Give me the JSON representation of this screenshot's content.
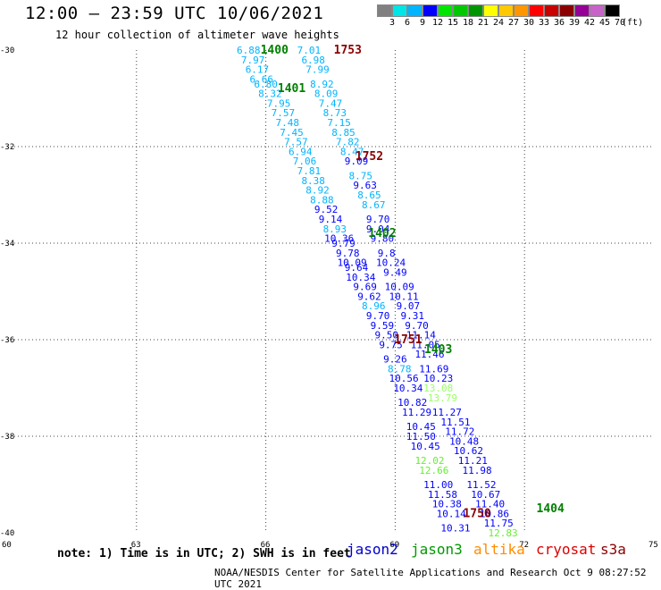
{
  "title": "12:00 – 23:59 UTC 10/06/2021",
  "subtitle": "12 hour collection of altimeter wave heights",
  "color_scale": {
    "unit": "(ft)",
    "colors": [
      "#808080",
      "#00e5e5",
      "#00b4ff",
      "#0000ff",
      "#00e600",
      "#00c800",
      "#009600",
      "#ffff00",
      "#ffc800",
      "#ff9600",
      "#ff0000",
      "#c80000",
      "#8c0000",
      "#960096",
      "#c864c8",
      "#000000"
    ],
    "labels": [
      "3",
      "6",
      "9",
      "12",
      "15",
      "18",
      "21",
      "24",
      "27",
      "30",
      "33",
      "36",
      "39",
      "42",
      "45",
      "70"
    ]
  },
  "chart_data": {
    "type": "scatter",
    "x_axis": {
      "range": [
        60,
        75
      ],
      "ticks": [
        "60",
        "63",
        "66",
        "69",
        "72",
        "75"
      ]
    },
    "y_axis": {
      "range": [
        -40,
        -30
      ],
      "ticks": [
        "-30",
        "-32",
        "-34",
        "-36",
        "-38",
        "-40"
      ]
    },
    "grid": true,
    "wave_heights": [
      {
        "lon": 65.6,
        "lat": -30.0,
        "v": "6.88",
        "c": "#00b4ff"
      },
      {
        "lon": 65.7,
        "lat": -30.2,
        "v": "7.97",
        "c": "#00b4ff"
      },
      {
        "lon": 65.8,
        "lat": -30.4,
        "v": "6.17",
        "c": "#00b4ff"
      },
      {
        "lon": 65.9,
        "lat": -30.6,
        "v": "6.66",
        "c": "#00b4ff"
      },
      {
        "lon": 66.0,
        "lat": -30.7,
        "v": "6.80",
        "c": "#00b4ff"
      },
      {
        "lon": 66.1,
        "lat": -30.9,
        "v": "8.32",
        "c": "#00b4ff"
      },
      {
        "lon": 66.3,
        "lat": -31.1,
        "v": "7.95",
        "c": "#00b4ff"
      },
      {
        "lon": 66.4,
        "lat": -31.3,
        "v": "7.57",
        "c": "#00b4ff"
      },
      {
        "lon": 66.5,
        "lat": -31.5,
        "v": "7.48",
        "c": "#00b4ff"
      },
      {
        "lon": 66.6,
        "lat": -31.7,
        "v": "7.45",
        "c": "#00b4ff"
      },
      {
        "lon": 66.7,
        "lat": -31.9,
        "v": "7.57",
        "c": "#00b4ff"
      },
      {
        "lon": 66.8,
        "lat": -32.1,
        "v": "6.94",
        "c": "#00b4ff"
      },
      {
        "lon": 66.9,
        "lat": -32.3,
        "v": "7.06",
        "c": "#00b4ff"
      },
      {
        "lon": 67.0,
        "lat": -32.5,
        "v": "7.81",
        "c": "#00b4ff"
      },
      {
        "lon": 67.1,
        "lat": -32.7,
        "v": "8.38",
        "c": "#00b4ff"
      },
      {
        "lon": 67.2,
        "lat": -32.9,
        "v": "8.92",
        "c": "#00b4ff"
      },
      {
        "lon": 67.3,
        "lat": -33.1,
        "v": "8.88",
        "c": "#00b4ff"
      },
      {
        "lon": 67.4,
        "lat": -33.3,
        "v": "9.52",
        "c": "#0000ff"
      },
      {
        "lon": 67.5,
        "lat": -33.5,
        "v": "9.14",
        "c": "#0000ff"
      },
      {
        "lon": 67.6,
        "lat": -33.7,
        "v": "8.93",
        "c": "#00b4ff"
      },
      {
        "lon": 67.7,
        "lat": -33.9,
        "v": "10.36",
        "c": "#0000ff"
      },
      {
        "lon": 67.8,
        "lat": -34.0,
        "v": "9.79",
        "c": "#0000ff"
      },
      {
        "lon": 67.9,
        "lat": -34.2,
        "v": "9.78",
        "c": "#0000ff"
      },
      {
        "lon": 68.0,
        "lat": -34.4,
        "v": "10.09",
        "c": "#0000ff"
      },
      {
        "lon": 68.1,
        "lat": -34.5,
        "v": "9.64",
        "c": "#0000ff"
      },
      {
        "lon": 68.2,
        "lat": -34.7,
        "v": "10.34",
        "c": "#0000ff"
      },
      {
        "lon": 68.3,
        "lat": -34.9,
        "v": "9.69",
        "c": "#0000ff"
      },
      {
        "lon": 68.4,
        "lat": -35.1,
        "v": "9.62",
        "c": "#0000ff"
      },
      {
        "lon": 68.5,
        "lat": -35.3,
        "v": "8.96",
        "c": "#00b4ff"
      },
      {
        "lon": 68.6,
        "lat": -35.5,
        "v": "9.70",
        "c": "#0000ff"
      },
      {
        "lon": 68.7,
        "lat": -35.7,
        "v": "9.59",
        "c": "#0000ff"
      },
      {
        "lon": 68.8,
        "lat": -35.9,
        "v": "9.50",
        "c": "#0000ff"
      },
      {
        "lon": 68.9,
        "lat": -36.1,
        "v": "9.75",
        "c": "#0000ff"
      },
      {
        "lon": 69.0,
        "lat": -36.4,
        "v": "9.26",
        "c": "#0000ff"
      },
      {
        "lon": 69.1,
        "lat": -36.6,
        "v": "8.78",
        "c": "#00b4ff"
      },
      {
        "lon": 69.2,
        "lat": -36.8,
        "v": "10.56",
        "c": "#0000ff"
      },
      {
        "lon": 69.3,
        "lat": -37.0,
        "v": "10.34",
        "c": "#0000ff"
      },
      {
        "lon": 69.4,
        "lat": -37.3,
        "v": "10.82",
        "c": "#0000ff"
      },
      {
        "lon": 69.5,
        "lat": -37.5,
        "v": "11.29",
        "c": "#0000ff"
      },
      {
        "lon": 69.6,
        "lat": -37.8,
        "v": "10.45",
        "c": "#0000ff"
      },
      {
        "lon": 69.6,
        "lat": -38.0,
        "v": "11.50",
        "c": "#0000ff"
      },
      {
        "lon": 69.7,
        "lat": -38.2,
        "v": "10.45",
        "c": "#0000ff"
      },
      {
        "lon": 69.8,
        "lat": -38.5,
        "v": "12.02",
        "c": "#66ee33"
      },
      {
        "lon": 69.9,
        "lat": -38.7,
        "v": "12.66",
        "c": "#66ee33"
      },
      {
        "lon": 70.0,
        "lat": -39.0,
        "v": "11.00",
        "c": "#0000ff"
      },
      {
        "lon": 70.1,
        "lat": -39.2,
        "v": "11.58",
        "c": "#0000ff"
      },
      {
        "lon": 70.2,
        "lat": -39.4,
        "v": "10.38",
        "c": "#0000ff"
      },
      {
        "lon": 70.3,
        "lat": -39.6,
        "v": "10.14",
        "c": "#0000ff"
      },
      {
        "lon": 70.4,
        "lat": -39.9,
        "v": "10.31",
        "c": "#0000ff"
      },
      {
        "lon": 67.0,
        "lat": -30.0,
        "v": "7.01",
        "c": "#00b4ff"
      },
      {
        "lon": 67.1,
        "lat": -30.2,
        "v": "6.98",
        "c": "#00b4ff"
      },
      {
        "lon": 67.2,
        "lat": -30.4,
        "v": "7.99",
        "c": "#00b4ff"
      },
      {
        "lon": 67.3,
        "lat": -30.7,
        "v": "8.92",
        "c": "#00b4ff"
      },
      {
        "lon": 67.4,
        "lat": -30.9,
        "v": "8.09",
        "c": "#00b4ff"
      },
      {
        "lon": 67.5,
        "lat": -31.1,
        "v": "7.47",
        "c": "#00b4ff"
      },
      {
        "lon": 67.6,
        "lat": -31.3,
        "v": "8.73",
        "c": "#00b4ff"
      },
      {
        "lon": 67.7,
        "lat": -31.5,
        "v": "7.15",
        "c": "#00b4ff"
      },
      {
        "lon": 67.8,
        "lat": -31.7,
        "v": "8.85",
        "c": "#00b4ff"
      },
      {
        "lon": 67.9,
        "lat": -31.9,
        "v": "7.82",
        "c": "#00b4ff"
      },
      {
        "lon": 68.0,
        "lat": -32.1,
        "v": "8.47",
        "c": "#00b4ff"
      },
      {
        "lon": 68.1,
        "lat": -32.3,
        "v": "9.09",
        "c": "#0000ff"
      },
      {
        "lon": 68.2,
        "lat": -32.6,
        "v": "8.75",
        "c": "#00b4ff"
      },
      {
        "lon": 68.3,
        "lat": -32.8,
        "v": "9.63",
        "c": "#0000ff"
      },
      {
        "lon": 68.4,
        "lat": -33.0,
        "v": "8.65",
        "c": "#00b4ff"
      },
      {
        "lon": 68.5,
        "lat": -33.2,
        "v": "8.67",
        "c": "#00b4ff"
      },
      {
        "lon": 68.6,
        "lat": -33.5,
        "v": "9.70",
        "c": "#0000ff"
      },
      {
        "lon": 68.6,
        "lat": -33.7,
        "v": "9.04",
        "c": "#0000ff"
      },
      {
        "lon": 68.7,
        "lat": -33.9,
        "v": "9.80",
        "c": "#0000ff"
      },
      {
        "lon": 68.8,
        "lat": -34.2,
        "v": "9.8",
        "c": "#0000ff"
      },
      {
        "lon": 68.9,
        "lat": -34.4,
        "v": "10.24",
        "c": "#0000ff"
      },
      {
        "lon": 69.0,
        "lat": -34.6,
        "v": "9.49",
        "c": "#0000ff"
      },
      {
        "lon": 69.1,
        "lat": -34.9,
        "v": "10.09",
        "c": "#0000ff"
      },
      {
        "lon": 69.2,
        "lat": -35.1,
        "v": "10.11",
        "c": "#0000ff"
      },
      {
        "lon": 69.3,
        "lat": -35.3,
        "v": "9.07",
        "c": "#0000ff"
      },
      {
        "lon": 69.4,
        "lat": -35.5,
        "v": "9.31",
        "c": "#0000ff"
      },
      {
        "lon": 69.5,
        "lat": -35.7,
        "v": "9.70",
        "c": "#0000ff"
      },
      {
        "lon": 69.6,
        "lat": -35.9,
        "v": "11.14",
        "c": "#0000ff"
      },
      {
        "lon": 69.7,
        "lat": -36.1,
        "v": "11.05",
        "c": "#0000ff"
      },
      {
        "lon": 69.8,
        "lat": -36.3,
        "v": "11.46",
        "c": "#0000ff"
      },
      {
        "lon": 69.9,
        "lat": -36.6,
        "v": "11.69",
        "c": "#0000ff"
      },
      {
        "lon": 70.0,
        "lat": -36.8,
        "v": "10.23",
        "c": "#0000ff"
      },
      {
        "lon": 70.0,
        "lat": -37.0,
        "v": "13.08",
        "c": "#99ff66"
      },
      {
        "lon": 70.1,
        "lat": -37.2,
        "v": "13.79",
        "c": "#99ff66"
      },
      {
        "lon": 70.2,
        "lat": -37.5,
        "v": "11.27",
        "c": "#0000ff"
      },
      {
        "lon": 70.4,
        "lat": -37.7,
        "v": "11.51",
        "c": "#0000ff"
      },
      {
        "lon": 70.5,
        "lat": -37.9,
        "v": "11.72",
        "c": "#0000ff"
      },
      {
        "lon": 70.6,
        "lat": -38.1,
        "v": "10.48",
        "c": "#0000ff"
      },
      {
        "lon": 70.7,
        "lat": -38.3,
        "v": "10.62",
        "c": "#0000ff"
      },
      {
        "lon": 70.8,
        "lat": -38.5,
        "v": "11.21",
        "c": "#0000ff"
      },
      {
        "lon": 70.9,
        "lat": -38.7,
        "v": "11.98",
        "c": "#0000ff"
      },
      {
        "lon": 71.0,
        "lat": -39.0,
        "v": "11.52",
        "c": "#0000ff"
      },
      {
        "lon": 71.1,
        "lat": -39.2,
        "v": "10.67",
        "c": "#0000ff"
      },
      {
        "lon": 71.2,
        "lat": -39.4,
        "v": "11.40",
        "c": "#0000ff"
      },
      {
        "lon": 71.3,
        "lat": -39.6,
        "v": "10.86",
        "c": "#0000ff"
      },
      {
        "lon": 71.4,
        "lat": -39.8,
        "v": "11.75",
        "c": "#0000ff"
      },
      {
        "lon": 71.5,
        "lat": -40.0,
        "v": "12.83",
        "c": "#66ee33"
      }
    ],
    "time_labels": [
      {
        "lon": 66.2,
        "lat": -30.0,
        "v": "1400",
        "c": "#008000"
      },
      {
        "lon": 67.9,
        "lat": -30.0,
        "v": "1753",
        "c": "#8b0000"
      },
      {
        "lon": 66.6,
        "lat": -30.8,
        "v": "1401",
        "c": "#008000"
      },
      {
        "lon": 68.4,
        "lat": -32.2,
        "v": "1752",
        "c": "#8b0000"
      },
      {
        "lon": 68.7,
        "lat": -33.8,
        "v": "1402",
        "c": "#008000"
      },
      {
        "lon": 69.3,
        "lat": -36.0,
        "v": "1751",
        "c": "#8b0000"
      },
      {
        "lon": 70.0,
        "lat": -36.2,
        "v": "1403",
        "c": "#008000"
      },
      {
        "lon": 70.9,
        "lat": -39.6,
        "v": "1750",
        "c": "#8b0000"
      },
      {
        "lon": 72.6,
        "lat": -39.5,
        "v": "1404",
        "c": "#008000"
      }
    ]
  },
  "note": "note: 1) Time is in UTC; 2) SWH is in feet",
  "legend": [
    {
      "label": "jason2",
      "color": "#0000cc",
      "left": 388
    },
    {
      "label": "jason3",
      "color": "#009900",
      "left": 460
    },
    {
      "label": "altika",
      "color": "#ff8c00",
      "left": 530
    },
    {
      "label": "cryosat",
      "color": "#dd0000",
      "left": 600
    },
    {
      "label": "s3a",
      "color": "#8b0000",
      "left": 672
    }
  ],
  "footer": "NOAA/NESDIS Center for Satellite Applications and Research   Oct  9 08:27:52 UTC 2021"
}
